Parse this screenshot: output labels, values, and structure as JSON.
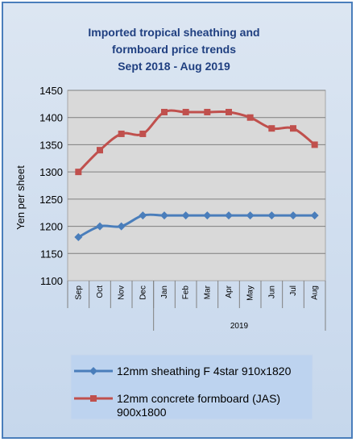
{
  "chart_data": {
    "type": "line",
    "title": [
      "Imported tropical sheathing and",
      "formboard price trends",
      "Sept 2018 - Aug 2019"
    ],
    "ylabel": "Yen per sheet",
    "xlabel": "",
    "year_label": "2019",
    "categories": [
      "Sep",
      "Oct",
      "Nov",
      "Dec",
      "Jan",
      "Feb",
      "Mar",
      "Apr",
      "May",
      "Jun",
      "Jul",
      "Aug"
    ],
    "ylim": [
      1100,
      1450
    ],
    "yticks": [
      "1100",
      "1150",
      "1200",
      "1250",
      "1300",
      "1350",
      "1400",
      "1450"
    ],
    "grid": true,
    "legend_position": "bottom",
    "series": [
      {
        "name": "12mm sheathing F 4star 910x1820",
        "color": "#4a7ebb",
        "marker": "diamond",
        "values": [
          1180,
          1200,
          1200,
          1220,
          1220,
          1220,
          1220,
          1220,
          1220,
          1220,
          1220,
          1220
        ]
      },
      {
        "name": "12mm concrete formboard (JAS) 900x1800",
        "legend_lines": [
          "12mm concrete formboard (JAS)",
          "900x1800"
        ],
        "color": "#c0504d",
        "marker": "square",
        "values": [
          1300,
          1340,
          1370,
          1370,
          1410,
          1410,
          1410,
          1410,
          1400,
          1380,
          1380,
          1350
        ]
      }
    ]
  }
}
